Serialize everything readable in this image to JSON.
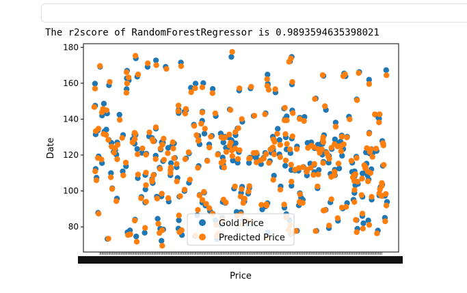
{
  "output": {
    "text": "The r2score of RandomForestRegressor is 0.9893594635398021"
  },
  "chart_data": {
    "type": "scatter",
    "xlabel": "Price",
    "ylabel": "Date",
    "ylim": [
      66,
      182
    ],
    "yticks": [
      80,
      100,
      120,
      140,
      160,
      180
    ],
    "xtick_count": 500,
    "legend_position": "lower-center",
    "colors": {
      "gold": "#1f77b4",
      "predicted": "#ff7f0e"
    },
    "series": [
      {
        "name": "Gold Price"
      },
      {
        "name": "Predicted Price"
      }
    ]
  }
}
